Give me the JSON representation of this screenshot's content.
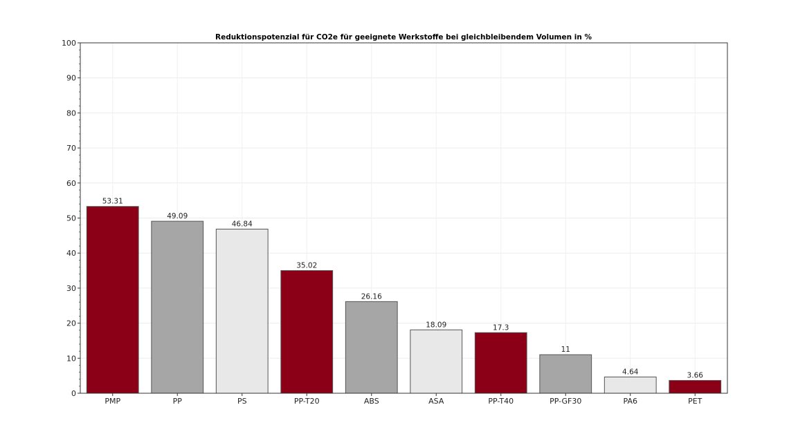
{
  "chart_data": {
    "type": "bar",
    "title": "Reduktionspotenzial für CO2e für geeignete Werkstoffe bei gleichbleibendem Volumen in %",
    "xlabel": "",
    "ylabel": "",
    "ylim": [
      0,
      100
    ],
    "yticks": [
      0,
      10,
      20,
      30,
      40,
      50,
      60,
      70,
      80,
      90,
      100
    ],
    "grid": true,
    "categories": [
      "PMP",
      "PP",
      "PS",
      "PP-T20",
      "ABS",
      "ASA",
      "PP-T40",
      "PP-GF30",
      "PA6",
      "PET"
    ],
    "values": [
      53.31,
      49.09,
      46.84,
      35.02,
      26.16,
      18.09,
      17.3,
      11,
      4.64,
      3.66
    ],
    "value_labels": [
      "53.31",
      "49.09",
      "46.84",
      "35.02",
      "26.16",
      "18.09",
      "17.3",
      "11",
      "4.64",
      "3.66"
    ],
    "colors": [
      "#8b0016",
      "#a6a6a6",
      "#e8e8e8",
      "#8b0016",
      "#a6a6a6",
      "#e8e8e8",
      "#8b0016",
      "#a6a6a6",
      "#e8e8e8",
      "#8b0016"
    ]
  }
}
